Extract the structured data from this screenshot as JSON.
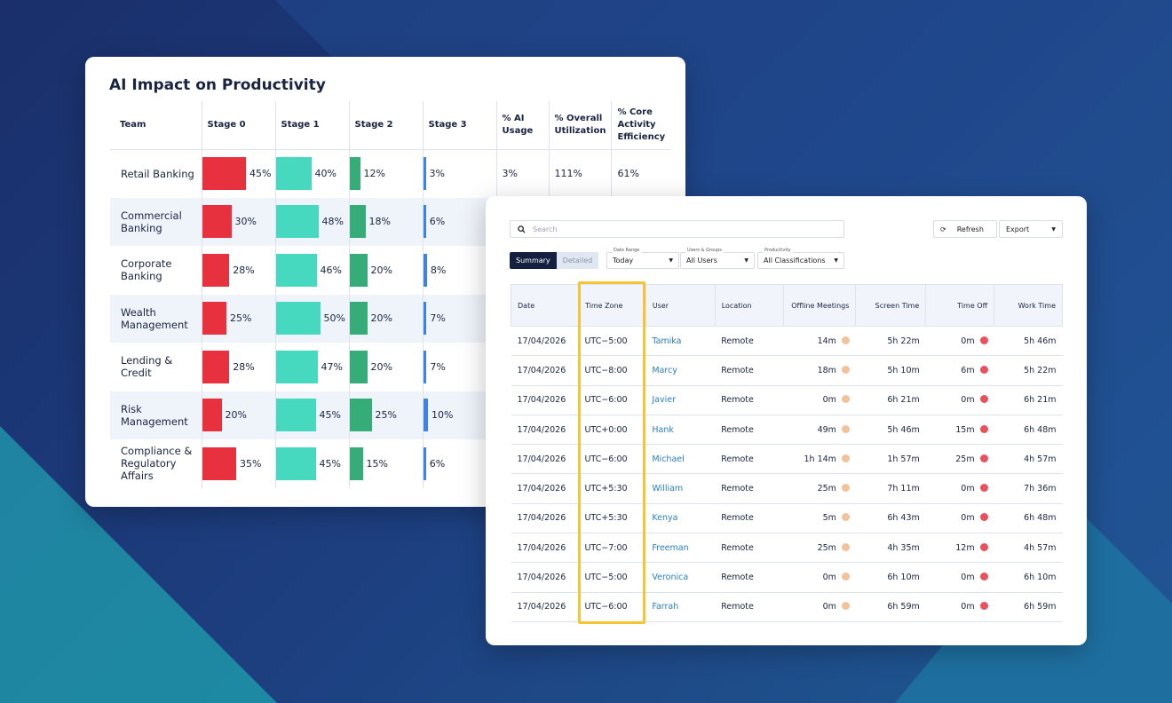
{
  "colors": {
    "stage0": "#e8313e",
    "stage1": "#47d9c0",
    "stage2": "#36ad78",
    "stage3": "#3b82f0",
    "highlight": "#f7c534",
    "offline_dot": "#f3c29b",
    "timeoff_dot": "#e8525e"
  },
  "productivity": {
    "title": "AI Impact on Productivity",
    "headers": [
      "Team",
      "Stage 0",
      "Stage 1",
      "Stage 2",
      "Stage 3",
      "% AI Usage",
      "% Overall Utilization",
      "% Core Activity Efficiency"
    ],
    "rows": [
      {
        "team": "Retail Banking",
        "s0": 45,
        "s1": 40,
        "s2": 12,
        "s3": 3,
        "s0l": "45%",
        "s1l": "40%",
        "s2l": "12%",
        "s3l": "3%",
        "ai": "3%",
        "util": "111%",
        "core": "61%"
      },
      {
        "team": "Commercial Banking",
        "s0": 30,
        "s1": 48,
        "s2": 18,
        "s3": 6,
        "s0l": "30%",
        "s1l": "48%",
        "s2l": "18%",
        "s3l": "6%"
      },
      {
        "team": "Corporate Banking",
        "s0": 28,
        "s1": 46,
        "s2": 20,
        "s3": 8,
        "s0l": "28%",
        "s1l": "46%",
        "s2l": "20%",
        "s3l": "8%"
      },
      {
        "team": "Wealth Management",
        "s0": 25,
        "s1": 50,
        "s2": 20,
        "s3": 7,
        "s0l": "25%",
        "s1l": "50%",
        "s2l": "20%",
        "s3l": "7%"
      },
      {
        "team": "Lending & Credit",
        "s0": 28,
        "s1": 47,
        "s2": 20,
        "s3": 7,
        "s0l": "28%",
        "s1l": "47%",
        "s2l": "20%",
        "s3l": "7%"
      },
      {
        "team": "Risk Management",
        "s0": 20,
        "s1": 45,
        "s2": 25,
        "s3": 10,
        "s0l": "20%",
        "s1l": "45%",
        "s2l": "25%",
        "s3l": "10%"
      },
      {
        "team": "Compliance & Regulatory Affairs",
        "s0": 35,
        "s1": 45,
        "s2": 15,
        "s3": 6,
        "s0l": "35%",
        "s1l": "45%",
        "s2l": "15%",
        "s3l": "6%"
      }
    ]
  },
  "report": {
    "search_placeholder": "Search",
    "refresh": "Refresh",
    "export": "Export",
    "tabs": [
      "Summary",
      "Detailed"
    ],
    "filters": [
      {
        "label": "Date Range",
        "value": "Today"
      },
      {
        "label": "Users & Groups",
        "value": "All Users"
      },
      {
        "label": "Productivity",
        "value": "All Classifications"
      }
    ],
    "headers": [
      "Date",
      "Time Zone",
      "User",
      "Location",
      "Offline Meetings",
      "Screen Time",
      "Time Off",
      "Work Time"
    ],
    "rows": [
      [
        "17/04/2026",
        "UTC−5:00",
        "Tamika",
        "Remote",
        "14m",
        "5h 22m",
        "0m",
        "5h 46m"
      ],
      [
        "17/04/2026",
        "UTC−8:00",
        "Marcy",
        "Remote",
        "18m",
        "5h 10m",
        "6m",
        "5h 22m"
      ],
      [
        "17/04/2026",
        "UTC−6:00",
        "Javier",
        "Remote",
        "0m",
        "6h 21m",
        "0m",
        "6h 21m"
      ],
      [
        "17/04/2026",
        "UTC+0:00",
        "Hank",
        "Remote",
        "49m",
        "5h 46m",
        "15m",
        "6h 48m"
      ],
      [
        "17/04/2026",
        "UTC−6:00",
        "Michael",
        "Remote",
        "1h 14m",
        "1h 57m",
        "25m",
        "4h 57m"
      ],
      [
        "17/04/2026",
        "UTC+5:30",
        "William",
        "Remote",
        "25m",
        "7h 11m",
        "0m",
        "7h 36m"
      ],
      [
        "17/04/2026",
        "UTC+5:30",
        "Kenya",
        "Remote",
        "5m",
        "6h 43m",
        "0m",
        "6h 48m"
      ],
      [
        "17/04/2026",
        "UTC−7:00",
        "Freeman",
        "Remote",
        "25m",
        "4h 35m",
        "12m",
        "4h 57m"
      ],
      [
        "17/04/2026",
        "UTC−5:00",
        "Veronica",
        "Remote",
        "0m",
        "6h 10m",
        "0m",
        "6h 10m"
      ],
      [
        "17/04/2026",
        "UTC−6:00",
        "Farrah",
        "Remote",
        "0m",
        "6h 59m",
        "0m",
        "6h 59m"
      ]
    ]
  }
}
